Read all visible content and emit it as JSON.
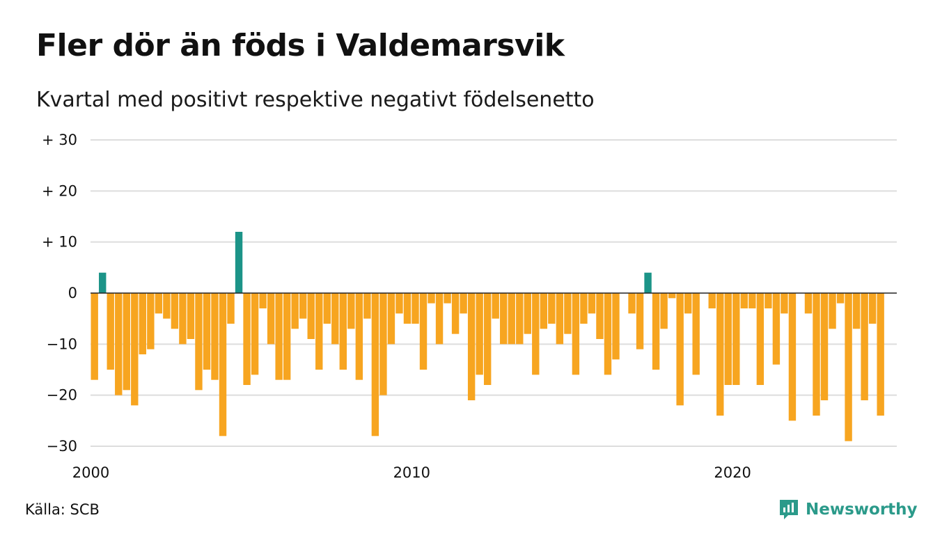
{
  "header": {
    "title": "Fler dör än föds i Valdemarsvik",
    "subtitle": "Kvartal med positivt respektive negativt födelsenetto"
  },
  "footer": {
    "source": "Källa: SCB",
    "brand": "Newsworthy"
  },
  "colors": {
    "positive": "#1c9488",
    "negative": "#f7a520",
    "grid": "#dddddd",
    "zero_line": "#222222",
    "brand": "#2b9a8a"
  },
  "chart_data": {
    "type": "bar",
    "title": "Fler dör än föds i Valdemarsvik",
    "subtitle": "Kvartal med positivt respektive negativt födelsenetto",
    "ylim": [
      -30,
      30
    ],
    "y_ticks": [
      {
        "value": 30,
        "label": "+ 30"
      },
      {
        "value": 20,
        "label": "+ 20"
      },
      {
        "value": 10,
        "label": "+ 10"
      },
      {
        "value": 0,
        "label": "0"
      },
      {
        "value": -10,
        "label": "−10"
      },
      {
        "value": -20,
        "label": "−20"
      },
      {
        "value": -30,
        "label": "−30"
      }
    ],
    "x_ticks": [
      {
        "value": 2000,
        "label": "2000"
      },
      {
        "value": 2010,
        "label": "2010"
      },
      {
        "value": 2020,
        "label": "2020"
      }
    ],
    "grid": true,
    "start_year": 2000,
    "periods_per_year": 4,
    "values": [
      -17,
      4,
      -15,
      -20,
      -19,
      -22,
      -12,
      -11,
      -4,
      -5,
      -7,
      -10,
      -9,
      -19,
      -15,
      -17,
      -28,
      -6,
      12,
      -18,
      -16,
      -3,
      -10,
      -17,
      -17,
      -7,
      -5,
      -9,
      -15,
      -6,
      -10,
      -15,
      -7,
      -17,
      -5,
      -28,
      -20,
      -10,
      -4,
      -6,
      -6,
      -15,
      -2,
      -10,
      -2,
      -8,
      -4,
      -21,
      -16,
      -18,
      -5,
      -10,
      -10,
      -10,
      -8,
      -16,
      -7,
      -6,
      -10,
      -8,
      -16,
      -6,
      -4,
      -9,
      -16,
      -13,
      0,
      -4,
      -11,
      4,
      -15,
      -7,
      -1,
      -22,
      -4,
      -16,
      0,
      -3,
      -24,
      -18,
      -18,
      -3,
      -3,
      -18,
      -3,
      -14,
      -4,
      -25,
      0,
      -4,
      -24,
      -21,
      -7,
      -2,
      -29,
      -7,
      -21,
      -6,
      -24
    ]
  }
}
